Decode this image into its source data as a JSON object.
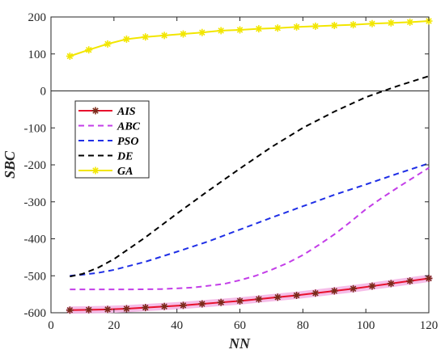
{
  "chart_data": {
    "type": "line",
    "xlabel": "NN",
    "ylabel": "SBC",
    "xlim": [
      0,
      120
    ],
    "ylim": [
      -600,
      200
    ],
    "xticks": [
      "0",
      "20",
      "40",
      "60",
      "80",
      "100",
      "120"
    ],
    "yticks": [
      "-600",
      "-500",
      "-400",
      "-300",
      "-200",
      "-100",
      "0",
      "100",
      "200"
    ],
    "grid": false,
    "legend_position": "upper-left",
    "zero_line": true,
    "colors": {
      "AIS": "#e8112d",
      "ABC": "#c33ee8",
      "PSO": "#1f2fe6",
      "DE": "#000000",
      "GA": "#f2e600"
    },
    "series": [
      {
        "name": "AIS",
        "style": "solid-asterisk",
        "x": [
          6,
          12,
          18,
          24,
          30,
          36,
          42,
          48,
          54,
          60,
          66,
          72,
          78,
          84,
          90,
          96,
          102,
          108,
          114,
          120
        ],
        "values": [
          -593,
          -592,
          -591,
          -589,
          -586,
          -583,
          -580,
          -576,
          -572,
          -568,
          -563,
          -558,
          -553,
          -547,
          -541,
          -535,
          -528,
          -521,
          -514,
          -507
        ]
      },
      {
        "name": "ABC",
        "style": "dashed",
        "x": [
          6,
          15,
          25,
          35,
          45,
          55,
          60,
          65,
          70,
          75,
          80,
          85,
          90,
          95,
          100,
          105,
          110,
          115,
          120
        ],
        "values": [
          -537,
          -537,
          -537,
          -536,
          -532,
          -522,
          -512,
          -500,
          -484,
          -466,
          -444,
          -417,
          -388,
          -355,
          -320,
          -290,
          -262,
          -235,
          -208
        ]
      },
      {
        "name": "PSO",
        "style": "dashed",
        "x": [
          6,
          10,
          15,
          20,
          30,
          40,
          50,
          60,
          70,
          80,
          90,
          100,
          110,
          120
        ],
        "values": [
          -500,
          -497,
          -492,
          -484,
          -462,
          -435,
          -407,
          -375,
          -343,
          -312,
          -281,
          -253,
          -224,
          -196
        ]
      },
      {
        "name": "DE",
        "style": "dashed",
        "x": [
          6,
          10,
          15,
          20,
          30,
          40,
          50,
          60,
          70,
          80,
          90,
          100,
          110,
          120
        ],
        "values": [
          -502,
          -495,
          -478,
          -455,
          -396,
          -332,
          -270,
          -210,
          -152,
          -100,
          -56,
          -17,
          13,
          40
        ]
      },
      {
        "name": "GA",
        "style": "solid-asterisk",
        "x": [
          6,
          12,
          18,
          24,
          30,
          36,
          42,
          48,
          54,
          60,
          66,
          72,
          78,
          84,
          90,
          96,
          102,
          108,
          114,
          120
        ],
        "values": [
          94,
          111,
          127,
          140,
          146,
          150,
          154,
          158,
          163,
          165,
          168,
          170,
          173,
          175,
          177,
          179,
          182,
          184,
          186,
          189
        ]
      }
    ]
  }
}
